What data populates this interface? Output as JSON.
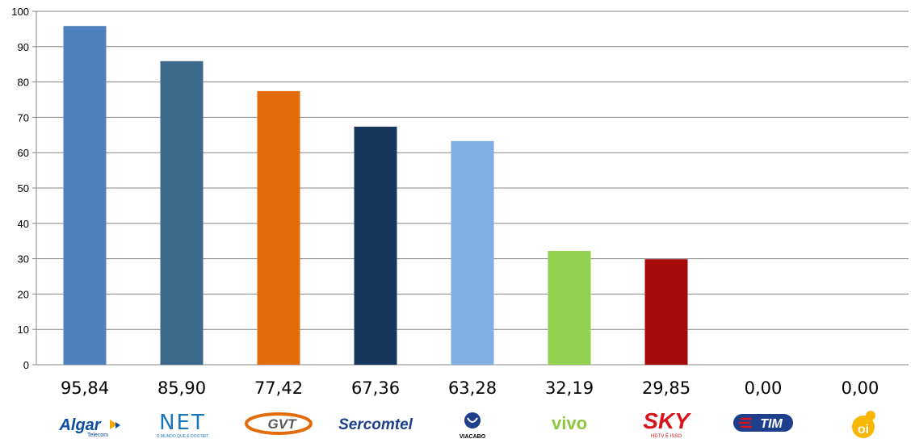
{
  "chart_data": {
    "type": "bar",
    "categories": [
      "Algar Telecom",
      "NET",
      "GVT",
      "Sercomtel",
      "Viacabo",
      "Vivo",
      "SKY",
      "TIM",
      "Oi"
    ],
    "values": [
      95.84,
      85.9,
      77.42,
      67.36,
      63.28,
      32.19,
      29.85,
      0.0,
      0.0
    ],
    "value_labels": [
      "95,84",
      "85,90",
      "77,42",
      "67,36",
      "63,28",
      "32,19",
      "29,85",
      "0,00",
      "0,00"
    ],
    "bar_colors": [
      "#4F81BD",
      "#3B6A8C",
      "#E36C0A",
      "#17375E",
      "#7FAEE0",
      "#92D050",
      "#A50B0B",
      "#A50B0B",
      "#A50B0B"
    ],
    "ylim": [
      0,
      100
    ],
    "yticks": [
      "0",
      "10",
      "20",
      "30",
      "40",
      "50",
      "60",
      "70",
      "80",
      "90",
      "100"
    ],
    "grid": true,
    "title": "",
    "xlabel": "",
    "ylabel": ""
  },
  "logos": [
    {
      "icon": "algar-telecom-logo",
      "text": "Algar",
      "subtext": "Telecom",
      "color": "#0B4DA2",
      "accent": "#F7A600"
    },
    {
      "icon": "net-logo",
      "text": "NET",
      "subtext": "O MUNDO QUE É DOS NET",
      "color": "#1B75BB"
    },
    {
      "icon": "gvt-logo",
      "text": "GVT",
      "color": "#5A5A5A",
      "accent": "#E36C0A"
    },
    {
      "icon": "sercomtel-logo",
      "text": "Sercomtel",
      "color": "#1D3F8C"
    },
    {
      "icon": "viacabo-logo",
      "text": "VIACABO",
      "color": "#1D3F8C"
    },
    {
      "icon": "vivo-logo",
      "text": "vivo",
      "color": "#8DC63F"
    },
    {
      "icon": "sky-logo",
      "text": "SKY",
      "subtext": "HDTV É ISSO",
      "color": "#D6121B"
    },
    {
      "icon": "tim-logo",
      "text": "TIM",
      "color": "#1D3F8C",
      "accent": "#D6121B"
    },
    {
      "icon": "oi-logo",
      "text": "oi",
      "color": "#F7B600"
    }
  ]
}
